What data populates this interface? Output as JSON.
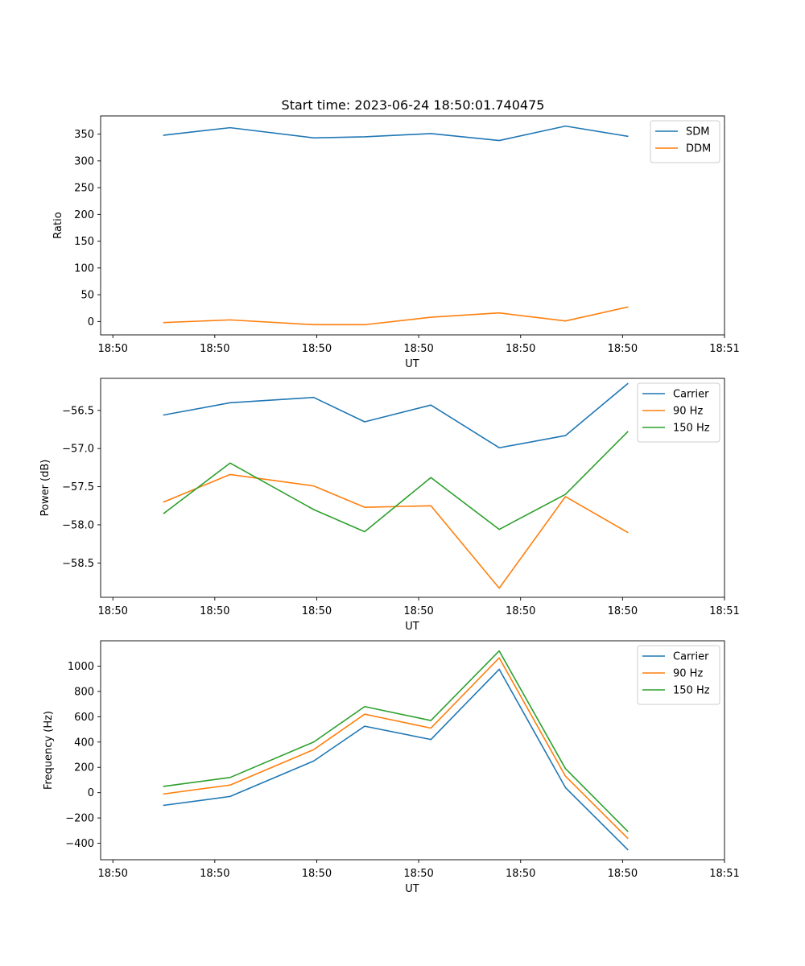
{
  "figure": {
    "title": "Start time: 2023-06-24 18:50:01.740475"
  },
  "chart_data": [
    {
      "type": "line",
      "title": "Start time: 2023-06-24 18:50:01.740475",
      "xlabel": "UT",
      "ylabel": "Ratio",
      "x_tick_labels": [
        "18:50",
        "18:50",
        "18:50",
        "18:50",
        "18:50",
        "18:50",
        "18:51"
      ],
      "x_tick_positions": [
        0.0,
        1.0,
        2.0,
        3.0,
        4.0,
        5.0,
        6.0
      ],
      "x": [
        0.5,
        1.15,
        1.97,
        2.47,
        3.12,
        3.79,
        4.44,
        5.05
      ],
      "xlim": [
        -0.12,
        6.0
      ],
      "y_ticks": [
        0,
        50,
        100,
        150,
        200,
        250,
        300,
        350
      ],
      "ylim": [
        -25,
        384
      ],
      "legend": "top-right",
      "grid": false,
      "series": [
        {
          "name": "SDM",
          "color": "#1f77b4",
          "values": [
            348,
            362,
            343,
            345,
            351,
            338,
            365,
            346
          ]
        },
        {
          "name": "DDM",
          "color": "#ff7f0e",
          "values": [
            -2,
            3,
            -6,
            -6,
            8,
            16,
            1,
            27
          ]
        }
      ]
    },
    {
      "type": "line",
      "xlabel": "UT",
      "ylabel": "Power (dB)",
      "x_tick_labels": [
        "18:50",
        "18:50",
        "18:50",
        "18:50",
        "18:50",
        "18:50",
        "18:51"
      ],
      "x_tick_positions": [
        0.0,
        1.0,
        2.0,
        3.0,
        4.0,
        5.0,
        6.0
      ],
      "x": [
        0.5,
        1.15,
        1.97,
        2.47,
        3.12,
        3.79,
        4.44,
        5.05
      ],
      "xlim": [
        -0.12,
        6.0
      ],
      "y_ticks": [
        -58.5,
        -58.0,
        -57.5,
        -57.0,
        -56.5
      ],
      "y_tick_labels": [
        "−58.5",
        "−58.0",
        "−57.5",
        "−57.0",
        "−56.5"
      ],
      "ylim": [
        -58.95,
        -56.08
      ],
      "legend": "top-right",
      "grid": false,
      "series": [
        {
          "name": "Carrier",
          "color": "#1f77b4",
          "values": [
            -56.56,
            -56.4,
            -56.33,
            -56.65,
            -56.43,
            -56.99,
            -56.83,
            -56.15
          ]
        },
        {
          "name": "90 Hz",
          "color": "#ff7f0e",
          "values": [
            -57.7,
            -57.34,
            -57.49,
            -57.77,
            -57.75,
            -58.83,
            -57.63,
            -58.1
          ]
        },
        {
          "name": "150 Hz",
          "color": "#2ca02c",
          "values": [
            -57.85,
            -57.19,
            -57.8,
            -58.09,
            -57.38,
            -58.06,
            -57.6,
            -56.78
          ]
        }
      ]
    },
    {
      "type": "line",
      "xlabel": "UT",
      "ylabel": "Frequency (Hz)",
      "x_tick_labels": [
        "18:50",
        "18:50",
        "18:50",
        "18:50",
        "18:50",
        "18:50",
        "18:51"
      ],
      "x_tick_positions": [
        0.0,
        1.0,
        2.0,
        3.0,
        4.0,
        5.0,
        6.0
      ],
      "x": [
        0.5,
        1.15,
        1.97,
        2.47,
        3.12,
        3.79,
        4.44,
        5.05
      ],
      "xlim": [
        -0.12,
        6.0
      ],
      "y_ticks": [
        -400,
        -200,
        0,
        200,
        400,
        600,
        800,
        1000
      ],
      "y_tick_labels": [
        "−400",
        "−200",
        "0",
        "200",
        "400",
        "600",
        "800",
        "1000"
      ],
      "ylim": [
        -530,
        1200
      ],
      "legend": "top-right",
      "grid": false,
      "series": [
        {
          "name": "Carrier",
          "color": "#1f77b4",
          "values": [
            -100,
            -30,
            250,
            525,
            420,
            975,
            40,
            -450
          ]
        },
        {
          "name": "90 Hz",
          "color": "#ff7f0e",
          "values": [
            -10,
            60,
            340,
            620,
            510,
            1065,
            130,
            -360
          ]
        },
        {
          "name": "150 Hz",
          "color": "#2ca02c",
          "values": [
            50,
            120,
            400,
            680,
            570,
            1120,
            190,
            -305
          ]
        }
      ]
    }
  ]
}
